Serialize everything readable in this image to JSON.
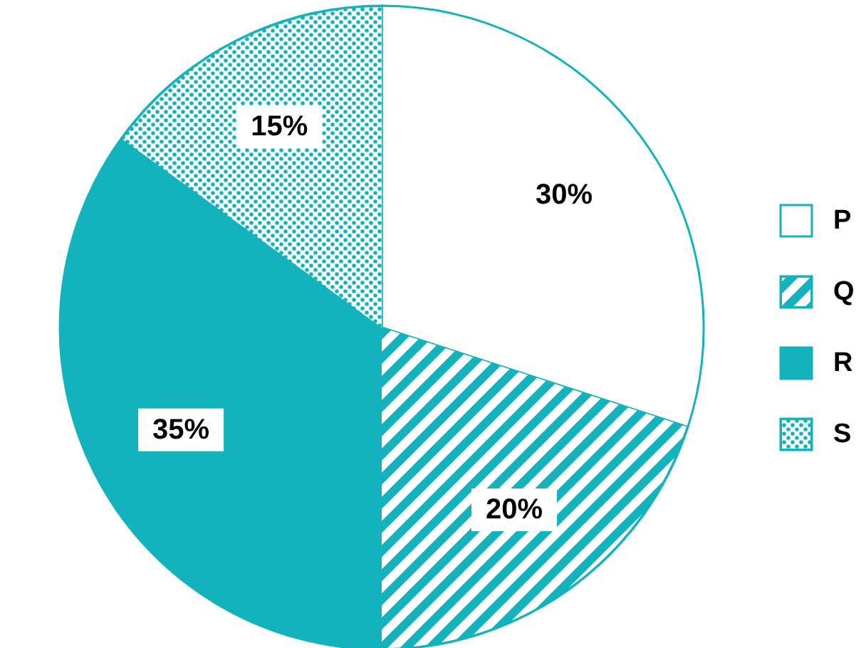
{
  "chart_data": {
    "type": "pie",
    "categories": [
      "P",
      "Q",
      "R",
      "S"
    ],
    "values": [
      30,
      20,
      35,
      15
    ],
    "colors": [
      "#ffffff",
      "#13b3be",
      "#13b3be",
      "#13b3be"
    ],
    "value_labels": [
      "30%",
      "20%",
      "35%",
      "15%"
    ],
    "legend": "right"
  }
}
